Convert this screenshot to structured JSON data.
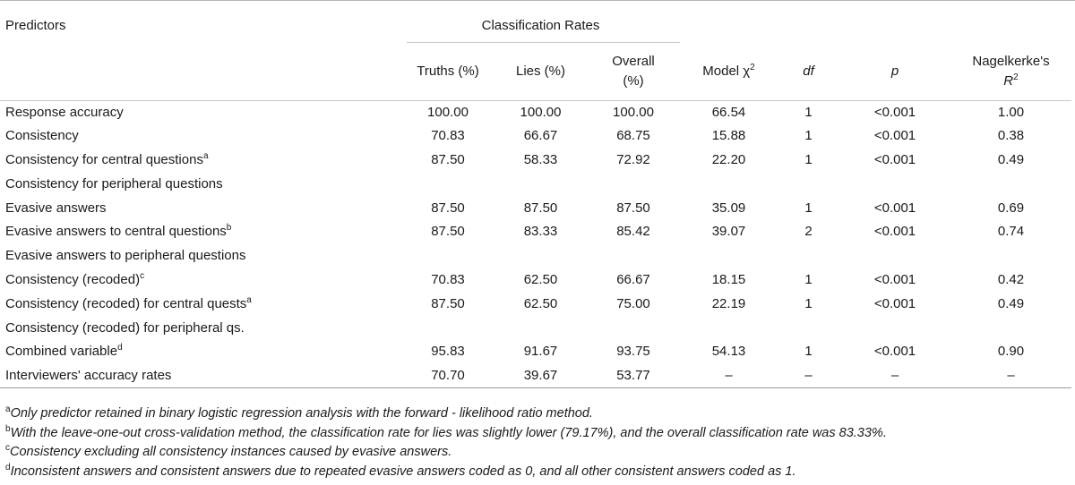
{
  "header": {
    "predictors": "Predictors",
    "classification_rates": "Classification Rates",
    "truths": "Truths (%)",
    "lies": "Lies (%)",
    "overall_line1": "Overall",
    "overall_line2": "(%)",
    "model_chi": "Model χ",
    "model_chi_sup": "2",
    "df": "df",
    "p": "p",
    "nagel_line1": "Nagelkerke's",
    "nagel_r": "R",
    "nagel_sup": "2"
  },
  "rows": [
    {
      "predictor": "Response accuracy",
      "sup": "",
      "truths": "100.00",
      "lies": "100.00",
      "overall": "100.00",
      "chi": "66.54",
      "df": "1",
      "p": "<0.001",
      "r2": "1.00"
    },
    {
      "predictor": "Consistency",
      "sup": "",
      "truths": "70.83",
      "lies": "66.67",
      "overall": "68.75",
      "chi": "15.88",
      "df": "1",
      "p": "<0.001",
      "r2": "0.38"
    },
    {
      "predictor": "Consistency for central questions",
      "sup": "a",
      "truths": "87.50",
      "lies": "58.33",
      "overall": "72.92",
      "chi": "22.20",
      "df": "1",
      "p": "<0.001",
      "r2": "0.49"
    },
    {
      "predictor": "Consistency for peripheral questions",
      "sup": "",
      "truths": "",
      "lies": "",
      "overall": "",
      "chi": "",
      "df": "",
      "p": "",
      "r2": ""
    },
    {
      "predictor": "Evasive answers",
      "sup": "",
      "truths": "87.50",
      "lies": "87.50",
      "overall": "87.50",
      "chi": "35.09",
      "df": "1",
      "p": "<0.001",
      "r2": "0.69"
    },
    {
      "predictor": "Evasive answers to central questions",
      "sup": "b",
      "truths": "87.50",
      "lies": "83.33",
      "overall": "85.42",
      "chi": "39.07",
      "df": "2",
      "p": "<0.001",
      "r2": "0.74"
    },
    {
      "predictor": "Evasive answers to peripheral questions",
      "sup": "",
      "truths": "",
      "lies": "",
      "overall": "",
      "chi": "",
      "df": "",
      "p": "",
      "r2": ""
    },
    {
      "predictor": "Consistency (recoded)",
      "sup": "c",
      "truths": "70.83",
      "lies": "62.50",
      "overall": "66.67",
      "chi": "18.15",
      "df": "1",
      "p": "<0.001",
      "r2": "0.42"
    },
    {
      "predictor": "Consistency (recoded) for central quests",
      "sup": "a",
      "truths": "87.50",
      "lies": "62.50",
      "overall": "75.00",
      "chi": "22.19",
      "df": "1",
      "p": "<0.001",
      "r2": "0.49"
    },
    {
      "predictor": "Consistency (recoded) for peripheral qs.",
      "sup": "",
      "truths": "",
      "lies": "",
      "overall": "",
      "chi": "",
      "df": "",
      "p": "",
      "r2": ""
    },
    {
      "predictor": "Combined variable",
      "sup": "d",
      "truths": "95.83",
      "lies": "91.67",
      "overall": "93.75",
      "chi": "54.13",
      "df": "1",
      "p": "<0.001",
      "r2": "0.90"
    },
    {
      "predictor": "Interviewers' accuracy rates",
      "sup": "",
      "truths": "70.70",
      "lies": "39.67",
      "overall": "53.77",
      "chi": "–",
      "df": "–",
      "p": "–",
      "r2": "–"
    }
  ],
  "notes": [
    {
      "mark": "a",
      "text": "Only predictor retained in binary logistic regression analysis with the forward - likelihood ratio method."
    },
    {
      "mark": "b",
      "text": "With the leave-one-out cross-validation method, the classification rate for lies was slightly lower (79.17%), and the overall classification rate was 83.33%."
    },
    {
      "mark": "c",
      "text": "Consistency excluding all consistency instances caused by evasive answers."
    },
    {
      "mark": "d",
      "text": "Inconsistent answers and consistent answers due to repeated evasive answers coded as 0, and all other consistent answers coded as 1."
    }
  ]
}
